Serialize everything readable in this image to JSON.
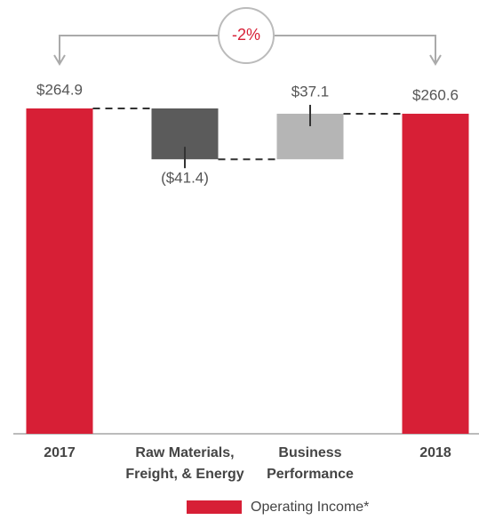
{
  "chart_data": {
    "type": "waterfall",
    "categories": [
      "2017",
      "Raw Materials, Freight, & Energy",
      "Business Performance",
      "2018"
    ],
    "values": [
      264.9,
      -41.4,
      37.1,
      260.6
    ],
    "value_labels": [
      "$264.9",
      "($41.4)",
      "$37.1",
      "$260.6"
    ],
    "measure": [
      "total",
      "relative",
      "relative",
      "total"
    ],
    "colors": [
      "#d71f36",
      "#5b5b5b",
      "#b5b5b5",
      "#d71f36"
    ],
    "annotation": "-2%",
    "legend": "Operating Income*",
    "legend_color": "#d71f36"
  }
}
